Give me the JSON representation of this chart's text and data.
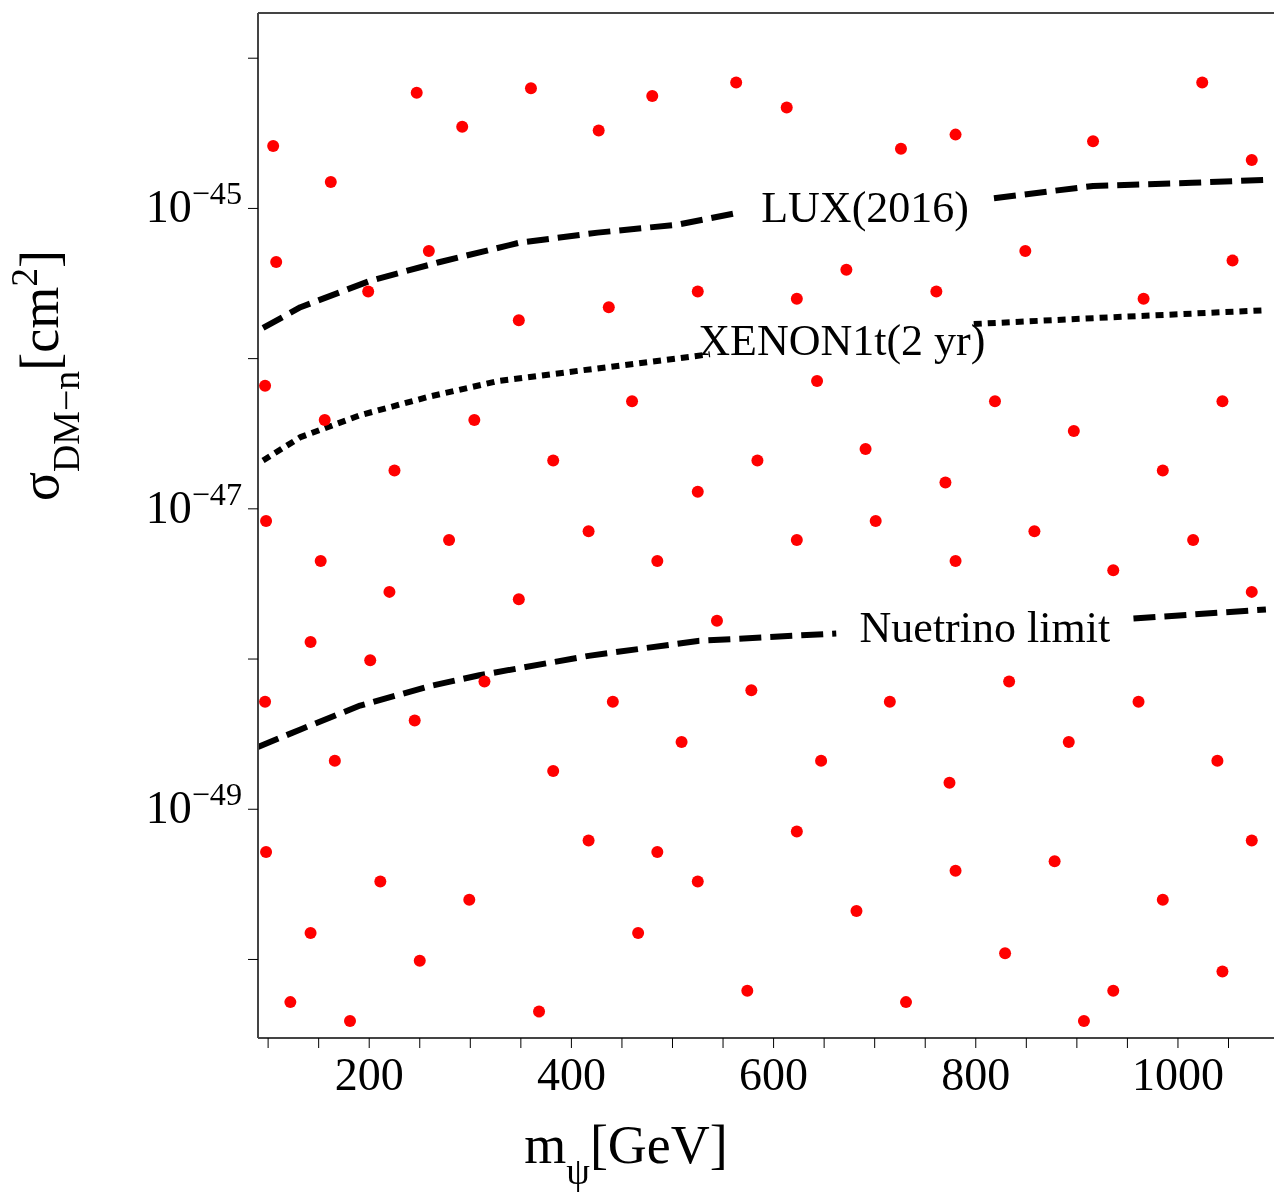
{
  "chart_data": {
    "type": "scatter",
    "xlabel": "m$_{ψ}$[GeV]",
    "ylabel": "σ$_{DM−n}$[cm$^{2}$]",
    "log": "y",
    "grid": false,
    "legend": false,
    "marker": "circle",
    "xlim": [
      90,
      1095
    ],
    "xticks": [
      {
        "value": 100,
        "label": null
      },
      {
        "value": 150,
        "label": null
      },
      200,
      {
        "value": 250,
        "label": null
      },
      {
        "value": 300,
        "label": null
      },
      {
        "value": 350,
        "label": null
      },
      400,
      {
        "value": 450,
        "label": null
      },
      {
        "value": 500,
        "label": null
      },
      {
        "value": 550,
        "label": null
      },
      600,
      {
        "value": 650,
        "label": null
      },
      {
        "value": 700,
        "label": null
      },
      {
        "value": 750,
        "label": null
      },
      800,
      {
        "value": 850,
        "label": null
      },
      {
        "value": 900,
        "label": null
      },
      {
        "value": 950,
        "label": null
      },
      1000,
      {
        "value": 1050,
        "label": null
      }
    ],
    "ylim": [
      3e-51,
      2e-44
    ],
    "yticks": [
      {
        "value": 1e-50,
        "label": null
      },
      {
        "value": 1e-49,
        "label": "10$^{−49}$"
      },
      {
        "value": 1e-48,
        "label": null
      },
      {
        "value": 1e-47,
        "label": "10$^{−47}$"
      },
      {
        "value": 1e-46,
        "label": null
      },
      {
        "value": 1e-45,
        "label": "10$^{−45}$"
      },
      {
        "value": 1e-44,
        "label": null
      }
    ],
    "series": [
      {
        "color": "#ff0000",
        "x": [
          247,
          360,
          480,
          563,
          1024,
          292,
          427,
          613,
          726,
          916,
          105,
          162,
          1073,
          780,
          108,
          199,
          348,
          437,
          525,
          672,
          761,
          849,
          966,
          1054,
          623,
          259,
          97,
          156,
          225,
          304,
          382,
          460,
          525,
          584,
          691,
          770,
          819,
          897,
          985,
          1044,
          643,
          98,
          152,
          220,
          279,
          348,
          417,
          485,
          544,
          623,
          701,
          780,
          858,
          936,
          1015,
          1073,
          142,
          97,
          166,
          245,
          314,
          382,
          441,
          509,
          578,
          647,
          715,
          774,
          833,
          892,
          961,
          1039,
          201,
          98,
          142,
          122,
          211,
          250,
          299,
          368,
          417,
          466,
          525,
          574,
          623,
          682,
          731,
          780,
          829,
          878,
          936,
          985,
          1044,
          1073,
          181,
          485,
          907
        ],
        "values": [
          5.9e-45,
          6.3e-45,
          5.6e-45,
          6.9e-45,
          6.9e-45,
          3.5e-45,
          3.3e-45,
          4.7e-45,
          2.5e-45,
          2.8e-45,
          2.6e-45,
          1.5e-45,
          2.1e-45,
          3.1e-45,
          4.4e-46,
          2.8e-46,
          1.8e-46,
          2.2e-46,
          2.8e-46,
          3.9e-46,
          2.8e-46,
          5.2e-46,
          2.5e-46,
          4.5e-46,
          2.5e-46,
          5.2e-46,
          6.6e-47,
          3.9e-47,
          1.8e-47,
          3.9e-47,
          2.1e-47,
          5.2e-47,
          1.3e-47,
          2.1e-47,
          2.5e-47,
          1.5e-47,
          5.2e-47,
          3.3e-47,
          1.8e-47,
          5.2e-47,
          7.1e-47,
          8.3e-48,
          4.5e-48,
          2.8e-48,
          6.2e-48,
          2.5e-48,
          7.1e-48,
          4.5e-48,
          1.8e-48,
          6.2e-48,
          8.3e-48,
          4.5e-48,
          7.1e-48,
          3.9e-48,
          6.2e-48,
          2.8e-48,
          1.3e-48,
          5.2e-49,
          2.1e-49,
          3.9e-49,
          7.1e-49,
          1.8e-49,
          5.2e-49,
          2.8e-49,
          6.2e-49,
          2.1e-49,
          5.2e-49,
          1.5e-49,
          7.1e-49,
          2.8e-49,
          5.2e-49,
          2.1e-49,
          9.8e-49,
          5.2e-50,
          1.5e-50,
          5.2e-51,
          3.3e-50,
          9.8e-51,
          2.5e-50,
          4.5e-51,
          6.2e-50,
          1.5e-50,
          3.3e-50,
          6.2e-51,
          7.1e-50,
          2.1e-50,
          5.2e-51,
          3.9e-50,
          1.1e-50,
          4.5e-50,
          6.2e-51,
          2.5e-50,
          8.3e-51,
          6.2e-50,
          3.9e-51,
          5.2e-50,
          3.9e-51
        ]
      },
      {
        "type": "line",
        "name": "LUX(2016)",
        "color": "#000000",
        "line_style": "dashed",
        "marker": "none",
        "x": [
          95,
          132,
          201,
          270,
          348,
          426,
          505,
          563,
          700,
          818,
          916,
          1014,
          1087
        ],
        "values": [
          1.6e-46,
          2.2e-46,
          3.3e-46,
          4.4e-46,
          5.9e-46,
          6.9e-46,
          7.8e-46,
          9.3e-46,
          null,
          1.17e-45,
          1.41e-45,
          1.48e-45,
          1.55e-45
        ]
      },
      {
        "type": "line",
        "name": "XENON1t(2 yr)",
        "color": "#000000",
        "line_style": "dotted",
        "marker": "none",
        "x": [
          95,
          132,
          191,
          260,
          328,
          407,
          466,
          537,
          650,
          798,
          916,
          1087
        ],
        "values": [
          2.1e-47,
          3e-47,
          4.2e-47,
          5.6e-47,
          7.1e-47,
          8.3e-47,
          9.3e-47,
          1.07e-46,
          null,
          1.7e-46,
          1.86e-46,
          2.1e-46
        ]
      },
      {
        "type": "line",
        "name": "Nuetrino limit",
        "color": "#000000",
        "line_style": "dashed",
        "marker": "none",
        "x": [
          90,
          132,
          191,
          260,
          309,
          417,
          525,
          662,
          800,
          956,
          1087
        ],
        "values": [
          2.6e-49,
          3.4e-49,
          4.9e-49,
          6.6e-49,
          7.8e-49,
          1.05e-48,
          1.32e-48,
          1.48e-48,
          null,
          1.86e-48,
          2.14e-48
        ]
      }
    ]
  }
}
